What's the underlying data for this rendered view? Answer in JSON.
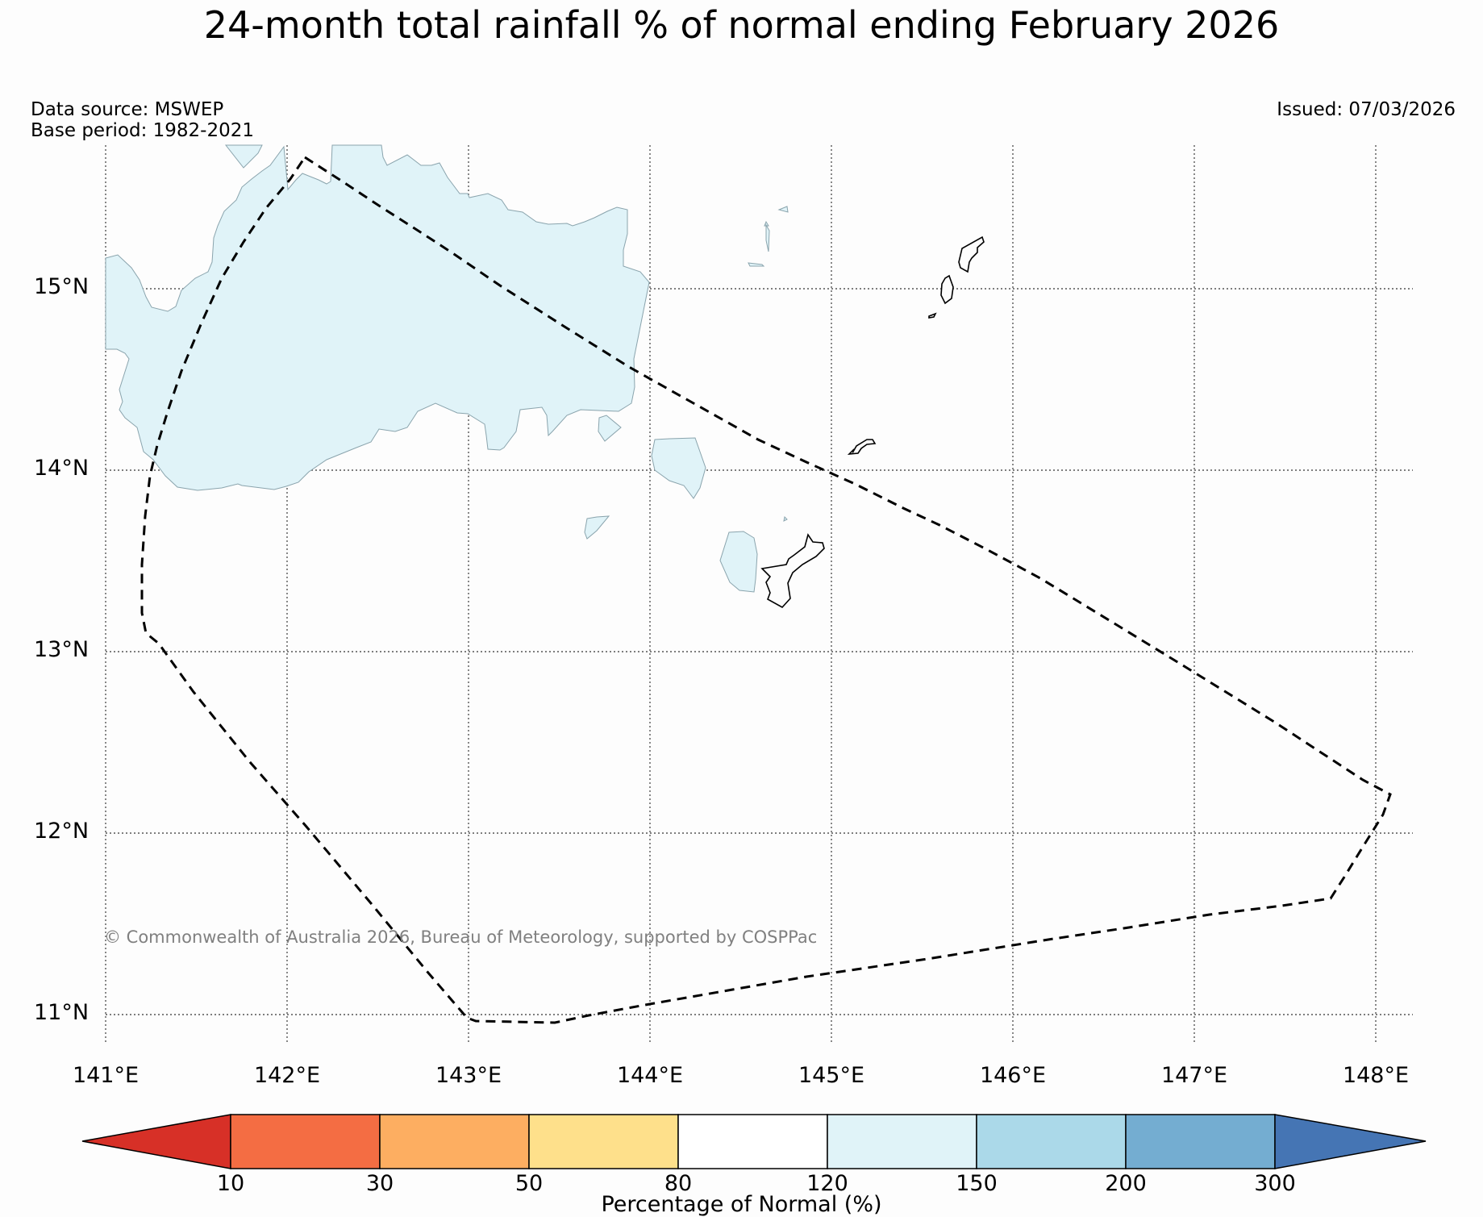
{
  "title": "24-month total rainfall % of normal ending February 2026",
  "data_source": "Data source: MSWEP",
  "base_period": "Base period: 1982-2021",
  "issued": "Issued: 07/03/2026",
  "copyright": "© Commonwealth of Australia 2026, Bureau of Meteorology, supported by COSPPac",
  "lat_labels": [
    "15°N",
    "14°N",
    "13°N",
    "12°N",
    "11°N"
  ],
  "lon_labels": [
    "141°E",
    "142°E",
    "143°E",
    "144°E",
    "145°E",
    "146°E",
    "147°E",
    "148°E"
  ],
  "legend": {
    "title": "Percentage of Normal (%)",
    "tick_labels": [
      "10",
      "30",
      "50",
      "80",
      "120",
      "150",
      "200",
      "300"
    ],
    "colors": [
      "#d73027",
      "#f46d43",
      "#fdae61",
      "#fee08b",
      "#ffffff",
      "#e0f3f8",
      "#abd9e9",
      "#74add1",
      "#4575b4"
    ]
  },
  "colors": {
    "land_fill": "#e0f3f8",
    "boundary": "#000000",
    "grid": "#555555"
  }
}
